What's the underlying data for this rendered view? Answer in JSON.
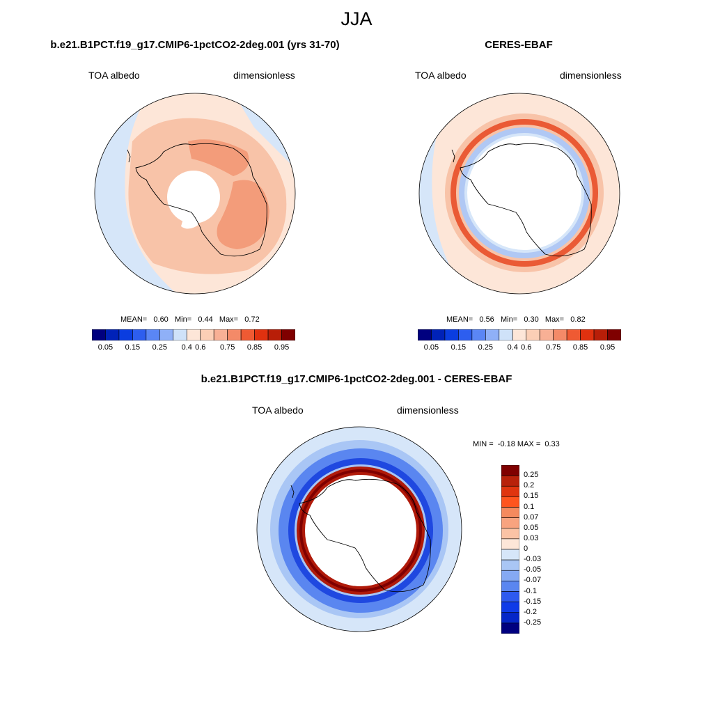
{
  "figure": {
    "title": "JJA"
  },
  "panels": [
    {
      "title": "b.e21.B1PCT.f19_g17.CMIP6-1pctCO2-2deg.001 (yrs 31-70)",
      "variable": "TOA albedo",
      "units": "dimensionless",
      "stats": {
        "mean_label": "MEAN=",
        "mean": "0.60",
        "min_label": "Min=",
        "min": "0.44",
        "max_label": "Max=",
        "max": "0.72"
      }
    },
    {
      "title": "CERES-EBAF",
      "variable": "TOA albedo",
      "units": "dimensionless",
      "stats": {
        "mean_label": "MEAN=",
        "mean": "0.56",
        "min_label": "Min=",
        "min": "0.30",
        "max_label": "Max=",
        "max": "0.82"
      }
    },
    {
      "title": "b.e21.B1PCT.f19_g17.CMIP6-1pctCO2-2deg.001 - CERES-EBAF",
      "variable": "TOA albedo",
      "units": "dimensionless",
      "stats": {
        "min_label": "MIN =",
        "min": "-0.18",
        "max_label": "MAX =",
        "max": "0.33"
      }
    }
  ],
  "colorbars": {
    "albedo": {
      "colors": [
        "#00007f",
        "#0022b8",
        "#0a3de0",
        "#2d5eef",
        "#5a86f5",
        "#8fb0f7",
        "#cfe2f9",
        "#fde6d8",
        "#fbcfb6",
        "#f8b095",
        "#f48a68",
        "#ef5a33",
        "#e0310f",
        "#b81e08",
        "#7f0000"
      ],
      "tick_labels": [
        "0.05",
        "0.15",
        "0.25",
        "0.4",
        "0.6",
        "0.75",
        "0.85",
        "0.95"
      ]
    },
    "difference": {
      "colors": [
        "#7f0000",
        "#b8210a",
        "#e0350f",
        "#ff551e",
        "#f58a5e",
        "#f8a37f",
        "#fbc3a5",
        "#fde6d8",
        "#d6e6f9",
        "#a9c6f5",
        "#85a9f3",
        "#5a86f0",
        "#2e5aef",
        "#0f3be8",
        "#0526c8",
        "#00007f"
      ],
      "tick_labels": [
        "0.25",
        "0.2",
        "0.15",
        "0.1",
        "0.07",
        "0.05",
        "0.03",
        "0",
        "-0.03",
        "-0.05",
        "-0.07",
        "-0.1",
        "-0.15",
        "-0.2",
        "-0.25"
      ]
    }
  },
  "map_fill_colors": {
    "ocean_low": "#d6e6f9",
    "light": "#fde6d8",
    "medium": "#f8c3a8",
    "strong": "#f39c7a",
    "ring_red": "#ea5a35",
    "ring_blue": "#b0c8f4",
    "diff_blue": "#5a86f0",
    "diff_dark_blue": "#1f48e0",
    "diff_ring": "#b01a0a",
    "diff_ring_dark": "#7f0000"
  }
}
